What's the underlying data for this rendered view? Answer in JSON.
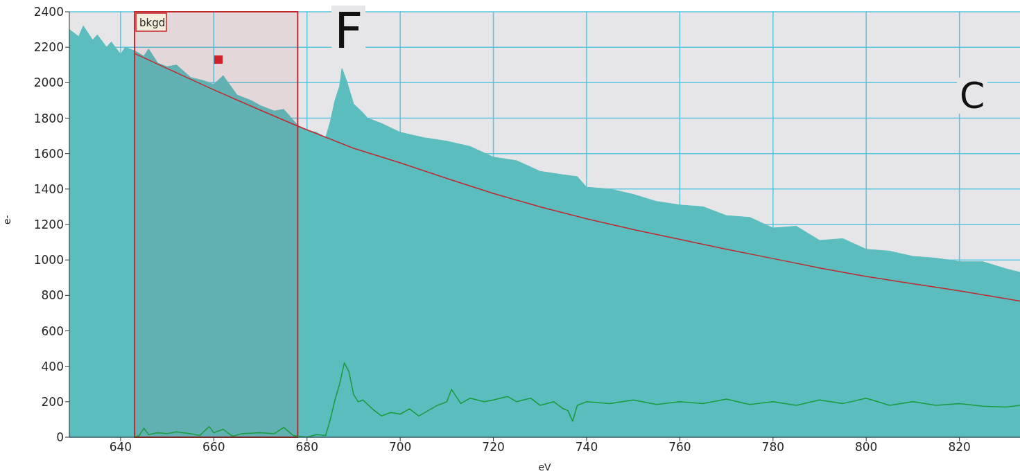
{
  "chart_data": {
    "type": "area",
    "xlabel": "eV",
    "ylabel": "e-",
    "xlim": [
      629,
      833
    ],
    "ylim": [
      0,
      2400
    ],
    "xticks": [
      640,
      660,
      680,
      700,
      720,
      740,
      760,
      780,
      800,
      820
    ],
    "yticks": [
      0,
      200,
      400,
      600,
      800,
      1000,
      1200,
      1400,
      1600,
      1800,
      2000,
      2200,
      2400
    ],
    "grid": true,
    "marker": "none",
    "series": [
      {
        "color": "#5bbdbd",
        "x": [
          629,
          631,
          632,
          634,
          635,
          637,
          638,
          640,
          641,
          643,
          645,
          646,
          648,
          650,
          652,
          655,
          658,
          660,
          662,
          665,
          668,
          670,
          673,
          675,
          677,
          678,
          680,
          682,
          684,
          685,
          686,
          687,
          687.5,
          688.5,
          690,
          692,
          693,
          696,
          700,
          705,
          710,
          715,
          720,
          725,
          730,
          735,
          738,
          740,
          745,
          750,
          755,
          760,
          765,
          770,
          775,
          780,
          785,
          790,
          795,
          800,
          805,
          810,
          815,
          820,
          825,
          830,
          833
        ],
        "values": [
          2300,
          2260,
          2320,
          2240,
          2270,
          2200,
          2230,
          2160,
          2200,
          2180,
          2150,
          2190,
          2110,
          2090,
          2100,
          2030,
          2010,
          1990,
          2040,
          1930,
          1900,
          1870,
          1840,
          1850,
          1790,
          1760,
          1730,
          1720,
          1690,
          1780,
          1900,
          1980,
          2080,
          2010,
          1880,
          1830,
          1800,
          1770,
          1720,
          1690,
          1670,
          1640,
          1580,
          1560,
          1500,
          1480,
          1470,
          1410,
          1400,
          1370,
          1330,
          1310,
          1300,
          1250,
          1240,
          1180,
          1190,
          1110,
          1120,
          1060,
          1050,
          1020,
          1010,
          990,
          990,
          950,
          930
        ]
      },
      {
        "type": "line",
        "color": "#c0282d",
        "x": [
          643,
          650,
          660,
          670,
          678,
          690,
          700,
          710,
          720,
          730,
          740,
          750,
          760,
          770,
          780,
          790,
          800,
          810,
          820,
          833
        ],
        "values": [
          2165,
          2080,
          1960,
          1845,
          1755,
          1630,
          1548,
          1460,
          1375,
          1300,
          1232,
          1172,
          1116,
          1060,
          1008,
          955,
          907,
          866,
          826,
          768
        ]
      },
      {
        "type": "line",
        "color": "#1a9a3a",
        "x": [
          643,
          644,
          645,
          646,
          648,
          650,
          652,
          655,
          657,
          659,
          660,
          662,
          664,
          666,
          670,
          673,
          675,
          677,
          678,
          680,
          682,
          684,
          685,
          686,
          687,
          688,
          689,
          690,
          691,
          692,
          694,
          696,
          698,
          700,
          702,
          704,
          706,
          708,
          710,
          711,
          713,
          715,
          718,
          720,
          723,
          725,
          728,
          730,
          733,
          735,
          736,
          737,
          738,
          740,
          745,
          750,
          755,
          760,
          765,
          770,
          775,
          780,
          785,
          790,
          795,
          800,
          805,
          810,
          815,
          820,
          825,
          830,
          833
        ],
        "values": [
          0,
          10,
          50,
          15,
          25,
          20,
          30,
          20,
          10,
          60,
          25,
          45,
          5,
          20,
          25,
          20,
          55,
          10,
          5,
          0,
          15,
          10,
          100,
          210,
          300,
          420,
          370,
          240,
          200,
          210,
          160,
          120,
          140,
          130,
          160,
          120,
          150,
          180,
          200,
          270,
          190,
          220,
          200,
          210,
          230,
          200,
          220,
          180,
          200,
          160,
          150,
          90,
          180,
          200,
          190,
          210,
          185,
          200,
          190,
          215,
          185,
          200,
          180,
          210,
          190,
          220,
          180,
          200,
          180,
          190,
          175,
          170,
          180
        ]
      }
    ],
    "bands": [
      {
        "axis": "x",
        "from": 643,
        "to": 678,
        "label": "bkgd",
        "color": "#c0282d"
      }
    ],
    "annotations": [
      "F",
      "C"
    ]
  }
}
